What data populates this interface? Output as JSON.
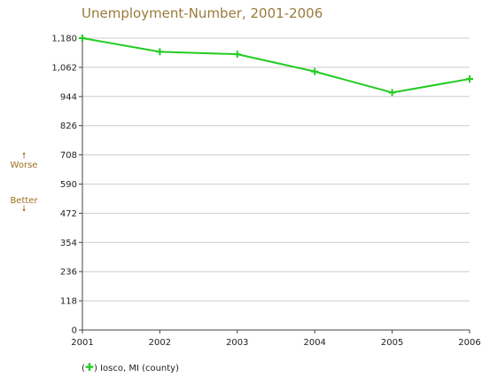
{
  "chart_data": {
    "type": "line",
    "title": "Unemployment-Number, 2001-2006",
    "x": [
      "2001",
      "2002",
      "2003",
      "2004",
      "2005",
      "2006"
    ],
    "series": [
      {
        "name": "Iosco, MI (county)",
        "color": "#22cc22",
        "values": [
          1180,
          1125,
          1115,
          1045,
          960,
          1015
        ]
      }
    ],
    "yticks": [
      0,
      118,
      236,
      354,
      472,
      590,
      708,
      826,
      944,
      1062,
      1180
    ],
    "ytick_labels": [
      "0",
      "118",
      "236",
      "354",
      "472",
      "590",
      "708",
      "826",
      "944",
      "1,062",
      "1,180"
    ],
    "ylim": [
      0,
      1180
    ],
    "grid": true,
    "legend_placement": "bottom-left"
  },
  "direction": {
    "up_label": "Worse",
    "down_label": "Better",
    "up_arrow": "🠕",
    "down_arrow": "🠗"
  },
  "legend": {
    "open_paren": "(",
    "marker": "✚",
    "close_paren": ")",
    "label": "Iosco, MI (county)"
  }
}
